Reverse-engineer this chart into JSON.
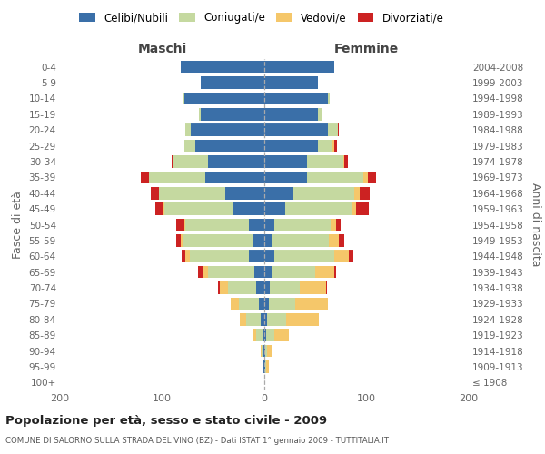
{
  "age_groups": [
    "100+",
    "95-99",
    "90-94",
    "85-89",
    "80-84",
    "75-79",
    "70-74",
    "65-69",
    "60-64",
    "55-59",
    "50-54",
    "45-49",
    "40-44",
    "35-39",
    "30-34",
    "25-29",
    "20-24",
    "15-19",
    "10-14",
    "5-9",
    "0-4"
  ],
  "birth_years": [
    "≤ 1908",
    "1909-1913",
    "1914-1918",
    "1919-1923",
    "1924-1928",
    "1929-1933",
    "1934-1938",
    "1939-1943",
    "1944-1948",
    "1949-1953",
    "1954-1958",
    "1959-1963",
    "1964-1968",
    "1969-1973",
    "1974-1978",
    "1979-1983",
    "1984-1988",
    "1989-1993",
    "1994-1998",
    "1999-2003",
    "2004-2008"
  ],
  "maschi": {
    "celibi": [
      0,
      1,
      1,
      2,
      4,
      5,
      8,
      10,
      15,
      12,
      15,
      30,
      38,
      58,
      55,
      68,
      72,
      62,
      78,
      62,
      82
    ],
    "coniugati": [
      0,
      1,
      2,
      6,
      14,
      20,
      28,
      45,
      58,
      68,
      62,
      68,
      65,
      55,
      35,
      10,
      5,
      2,
      1,
      0,
      0
    ],
    "vedovi": [
      0,
      0,
      1,
      3,
      6,
      8,
      8,
      5,
      4,
      2,
      1,
      1,
      0,
      0,
      0,
      0,
      0,
      0,
      0,
      0,
      0
    ],
    "divorziati": [
      0,
      0,
      0,
      0,
      0,
      0,
      1,
      5,
      4,
      4,
      8,
      8,
      8,
      8,
      1,
      0,
      0,
      0,
      0,
      0,
      0
    ]
  },
  "femmine": {
    "nubili": [
      0,
      1,
      1,
      2,
      3,
      4,
      5,
      8,
      10,
      8,
      10,
      20,
      28,
      42,
      42,
      52,
      62,
      52,
      62,
      52,
      68
    ],
    "coniugate": [
      0,
      1,
      2,
      8,
      18,
      26,
      30,
      42,
      58,
      55,
      55,
      65,
      60,
      55,
      35,
      15,
      10,
      4,
      2,
      0,
      0
    ],
    "vedove": [
      0,
      2,
      5,
      14,
      32,
      32,
      25,
      18,
      15,
      10,
      5,
      5,
      5,
      4,
      1,
      1,
      0,
      0,
      0,
      0,
      0
    ],
    "divorziate": [
      0,
      0,
      0,
      0,
      0,
      0,
      1,
      2,
      4,
      5,
      5,
      12,
      10,
      8,
      4,
      3,
      1,
      0,
      0,
      0,
      0
    ]
  },
  "color_celibi": "#3a6fa8",
  "color_coniugati": "#c5d9a0",
  "color_vedovi": "#f5c76a",
  "color_divorziati": "#cc2222",
  "xlim": 200,
  "title": "Popolazione per età, sesso e stato civile - 2009",
  "subtitle": "COMUNE DI SALORNO SULLA STRADA DEL VINO (BZ) - Dati ISTAT 1° gennaio 2009 - TUTTITALIA.IT",
  "ylabel_left": "Fasce di età",
  "ylabel_right": "Anni di nascita",
  "xlabel_maschi": "Maschi",
  "xlabel_femmine": "Femmine",
  "legend_labels": [
    "Celibi/Nubili",
    "Coniugati/e",
    "Vedovi/e",
    "Divorziati/e"
  ]
}
